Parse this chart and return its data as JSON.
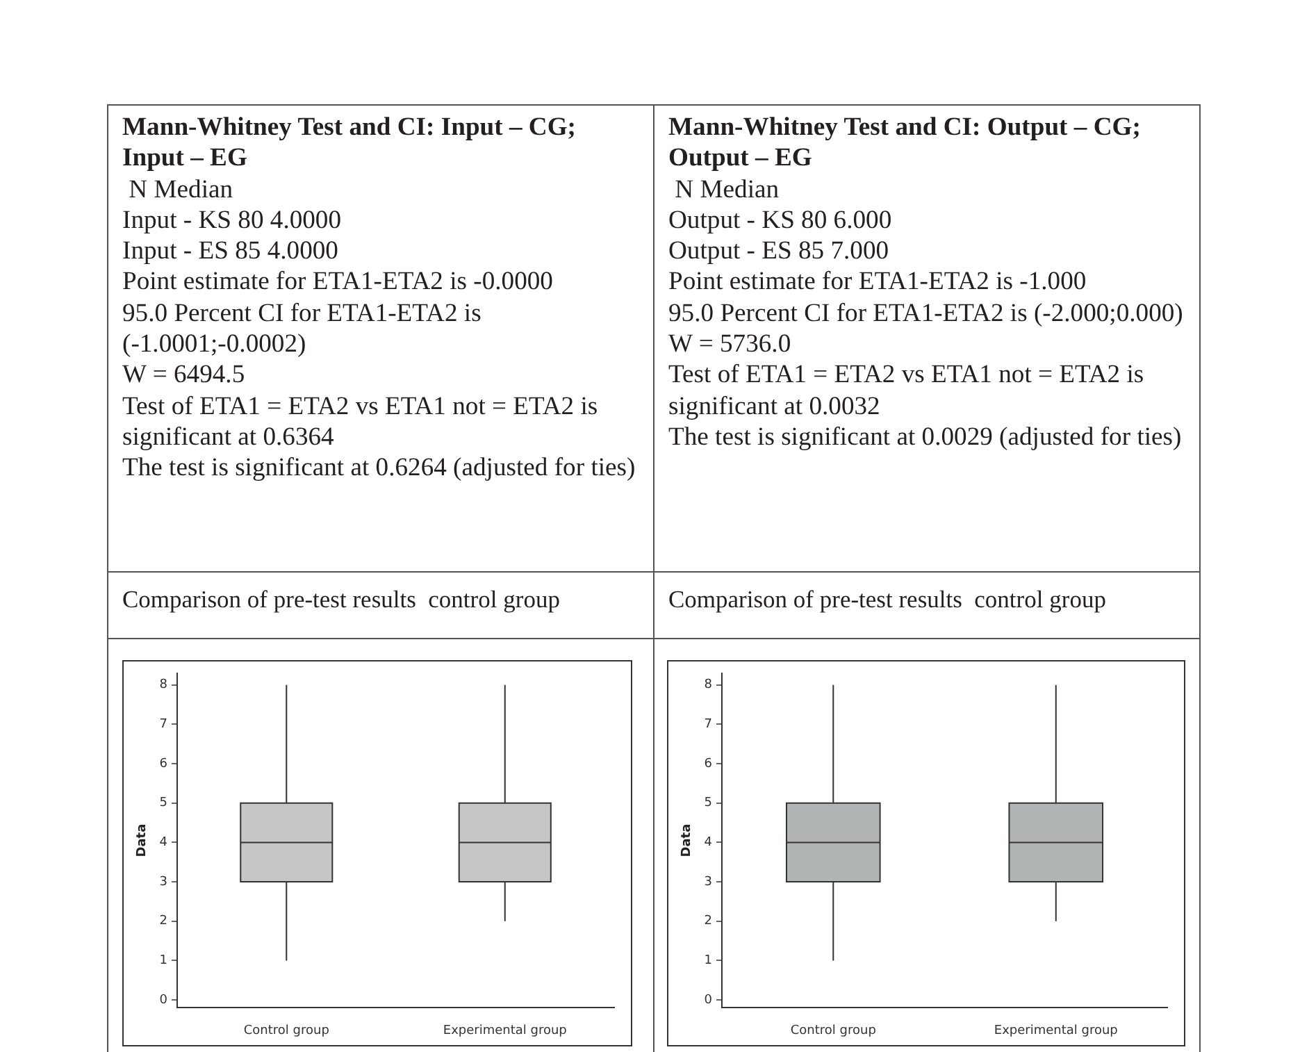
{
  "chart_data": [
    {
      "type": "other",
      "title": "Mann-Whitney Test and CI: Input – CG; Input – EG",
      "annotations": [
        " N Median",
        "Input - KS 80 4.0000",
        "Input - ES 85 4.0000",
        "Point estimate for ETA1-ETA2 is -0.0000",
        "95.0 Percent CI for ETA1-ETA2 is (-1.0001;-0.0002)",
        "W = 6494.5",
        "Test of ETA1 = ETA2 vs ETA1 not = ETA2 is significant at 0.6364",
        "The test is significant at 0.6264 (adjusted for ties)"
      ]
    },
    {
      "type": "other",
      "title": "Mann-Whitney Test and CI: Output – CG; Output – EG",
      "annotations": [
        " N Median",
        "Output - KS 80 6.000",
        "Output - ES 85 7.000",
        "Point estimate for ETA1-ETA2 is -1.000",
        "95.0 Percent CI for ETA1-ETA2 is (-2.000;0.000)",
        "W = 5736.0",
        "Test of ETA1 = ETA2 vs ETA1 not = ETA2 is significant at 0.0032",
        "The test is significant at 0.0029 (adjusted for ties)"
      ]
    },
    {
      "type": "box",
      "title": "Comparison of pre-test results  control group",
      "ylabel": "Data",
      "categories": [
        "Control group",
        "Experimental group"
      ],
      "color": "#c6c6c6",
      "boxes": [
        {
          "low": 1,
          "q1": 3,
          "median": 4,
          "q3": 5,
          "high": 8
        },
        {
          "low": 2,
          "q1": 3,
          "median": 4,
          "q3": 5,
          "high": 8
        }
      ],
      "ylim": [
        -0.2,
        8.3
      ],
      "yticks": [
        0,
        1,
        2,
        3,
        4,
        5,
        6,
        7,
        8
      ],
      "grid": false
    },
    {
      "type": "box",
      "title": "Comparison of pre-test results  control group",
      "ylabel": "Data",
      "categories": [
        "Control group",
        "Experimental group"
      ],
      "color": "#b2b5b5",
      "boxes": [
        {
          "low": 1,
          "q1": 3,
          "median": 4,
          "q3": 5,
          "high": 8
        },
        {
          "low": 2,
          "q1": 3,
          "median": 4,
          "q3": 5,
          "high": 8
        }
      ],
      "ylim": [
        -0.2,
        8.3
      ],
      "yticks": [
        0,
        1,
        2,
        3,
        4,
        5,
        6,
        7,
        8
      ],
      "grid": false
    }
  ]
}
